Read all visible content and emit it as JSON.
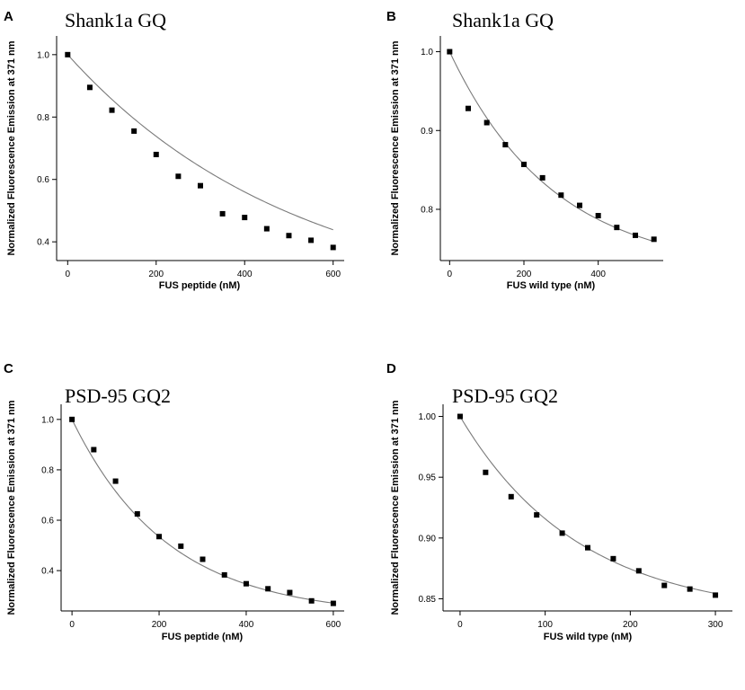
{
  "figure": {
    "panels": [
      "A",
      "B",
      "C",
      "D"
    ]
  },
  "chart_data": [
    {
      "panel": "A",
      "type": "scatter",
      "title": "Shank1a GQ",
      "xlabel": "FUS peptide (nM)",
      "ylabel": "Normalized Fluorescence Emission at 371 nm",
      "xlim": [
        -25,
        625
      ],
      "ylim": [
        0.34,
        1.06
      ],
      "xticks": [
        0,
        200,
        400,
        600
      ],
      "xtick_labels": [
        "0",
        "200",
        "400",
        "600"
      ],
      "yticks": [
        0.4,
        0.6,
        0.8,
        1.0
      ],
      "ytick_labels": [
        "0.4",
        "0.6",
        "0.8",
        "1.0"
      ],
      "x": [
        0,
        50,
        100,
        150,
        200,
        250,
        300,
        350,
        400,
        450,
        500,
        550,
        600
      ],
      "y": [
        1.0,
        0.895,
        0.822,
        0.755,
        0.68,
        0.61,
        0.58,
        0.49,
        0.478,
        0.442,
        0.42,
        0.405,
        0.382
      ],
      "fit": {
        "y0": 0.18,
        "A": 0.82,
        "tau": 520
      }
    },
    {
      "panel": "B",
      "type": "scatter",
      "title": "Shank1a GQ",
      "xlabel": "FUS wild type (nM)",
      "ylabel": "Normalized Fluorescence Emission at 371 nm",
      "xlim": [
        -25,
        575
      ],
      "ylim": [
        0.735,
        1.02
      ],
      "xticks": [
        0,
        200,
        400
      ],
      "xtick_labels": [
        "0",
        "200",
        "400"
      ],
      "yticks": [
        0.8,
        0.9,
        1.0
      ],
      "ytick_labels": [
        "0.8",
        "0.9",
        "1.0"
      ],
      "x": [
        0,
        50,
        100,
        150,
        200,
        250,
        300,
        350,
        400,
        450,
        500,
        550
      ],
      "y": [
        1.0,
        0.928,
        0.91,
        0.882,
        0.857,
        0.84,
        0.818,
        0.805,
        0.792,
        0.777,
        0.767,
        0.762
      ],
      "fit": {
        "y0": 0.72,
        "A": 0.28,
        "tau": 280
      }
    },
    {
      "panel": "C",
      "type": "scatter",
      "title": "PSD-95 GQ2",
      "xlabel": "FUS peptide (nM)",
      "ylabel": "Normalized Fluorescence Emission at 371 nm",
      "xlim": [
        -25,
        625
      ],
      "ylim": [
        0.24,
        1.06
      ],
      "xticks": [
        0,
        200,
        400,
        600
      ],
      "xtick_labels": [
        "0",
        "200",
        "400",
        "600"
      ],
      "yticks": [
        0.4,
        0.6,
        0.8,
        1.0
      ],
      "ytick_labels": [
        "0.4",
        "0.6",
        "0.8",
        "1.0"
      ],
      "x": [
        0,
        50,
        100,
        150,
        200,
        250,
        300,
        350,
        400,
        450,
        500,
        550,
        600
      ],
      "y": [
        1.0,
        0.88,
        0.755,
        0.625,
        0.535,
        0.497,
        0.445,
        0.383,
        0.348,
        0.328,
        0.313,
        0.28,
        0.27
      ],
      "fit": {
        "y0": 0.22,
        "A": 0.78,
        "tau": 220
      }
    },
    {
      "panel": "D",
      "type": "scatter",
      "title": "PSD-95 GQ2",
      "xlabel": "FUS wild type (nM)",
      "ylabel": "Normalized Fluorescence Emission at 371 nm",
      "xlim": [
        -20,
        320
      ],
      "ylim": [
        0.84,
        1.01
      ],
      "xticks": [
        0,
        100,
        200,
        300
      ],
      "xtick_labels": [
        "0",
        "100",
        "200",
        "300"
      ],
      "yticks": [
        0.85,
        0.9,
        0.95,
        1.0
      ],
      "ytick_labels": [
        "0.85",
        "0.90",
        "0.95",
        "1.00"
      ],
      "x": [
        0,
        30,
        60,
        90,
        120,
        150,
        180,
        210,
        240,
        270,
        300
      ],
      "y": [
        1.0,
        0.954,
        0.934,
        0.919,
        0.904,
        0.892,
        0.883,
        0.873,
        0.861,
        0.858,
        0.853
      ],
      "fit": {
        "y0": 0.835,
        "A": 0.165,
        "tau": 140
      }
    }
  ]
}
